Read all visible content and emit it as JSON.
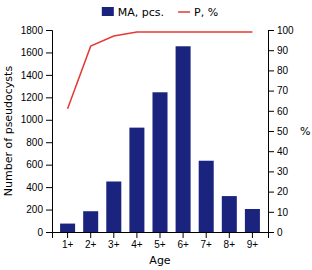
{
  "chart_data": {
    "type": "bar",
    "xlabel": "Age",
    "ylabel": "Number of pseudocysts",
    "y2label": "%",
    "categories": [
      "1+",
      "2+",
      "3+",
      "4+",
      "5+",
      "6+",
      "7+",
      "8+",
      "9+"
    ],
    "series": [
      {
        "name": "MA, pcs.",
        "type": "bar",
        "color": "#1a237e",
        "values": [
          75,
          185,
          450,
          930,
          1245,
          1655,
          635,
          320,
          205
        ]
      },
      {
        "name": "P, %",
        "type": "line",
        "color": "#e53935",
        "axis": "y2",
        "values": [
          61,
          92,
          97,
          99,
          99,
          99,
          99,
          99,
          99
        ]
      }
    ],
    "ylim": [
      0,
      1800
    ],
    "yticks": [
      0,
      200,
      400,
      600,
      800,
      1000,
      1200,
      1400,
      1600,
      1800
    ],
    "y2lim": [
      0,
      100
    ],
    "y2ticks": [
      0,
      10,
      20,
      30,
      40,
      50,
      60,
      70,
      80,
      90,
      100
    ],
    "legend": "top"
  }
}
